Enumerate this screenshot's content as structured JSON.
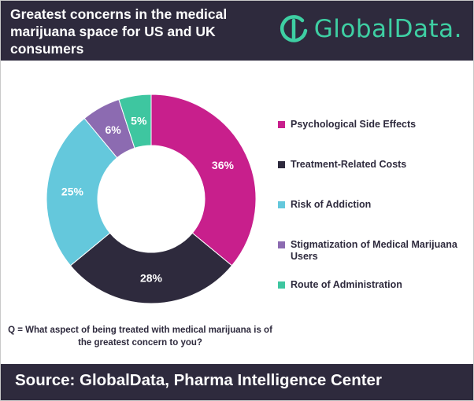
{
  "header": {
    "title": "Greatest concerns in the medical marijuana space for US and UK consumers",
    "logo_text": "GlobalData."
  },
  "colors": {
    "header_bg": "#2e2a3d",
    "brand_accent": "#3ecfa3"
  },
  "chart_data": {
    "type": "pie",
    "subtype": "donut",
    "categories": [
      "Psychological Side Effects",
      "Treatment-Related Costs",
      "Risk of Addiction",
      "Stigmatization of Medical Marijuana Users",
      "Route of Administration"
    ],
    "values": [
      36,
      28,
      25,
      6,
      5
    ],
    "labels": [
      "36%",
      "28%",
      "25%",
      "6%",
      "5%"
    ],
    "colors": [
      "#c81f8c",
      "#2e2a3d",
      "#64c8dc",
      "#8c6bb1",
      "#3ec6a0"
    ],
    "legend_position": "right"
  },
  "question": "Q = What aspect of being treated with medical marijuana is of the greatest concern to you?",
  "footer": {
    "source": "Source: GlobalData, Pharma Intelligence Center"
  }
}
